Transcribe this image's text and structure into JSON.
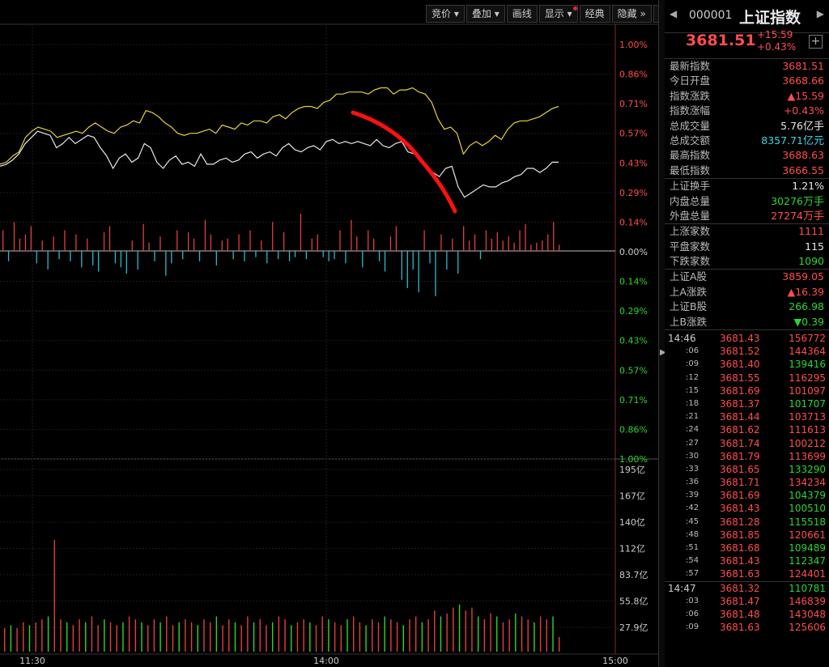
{
  "toolbar": {
    "buttons": [
      {
        "label": "竞价",
        "dropdown": true
      },
      {
        "label": "叠加",
        "dropdown": true
      },
      {
        "label": "画线",
        "dropdown": false
      },
      {
        "label": "显示",
        "dropdown": true
      },
      {
        "label": "经典",
        "dropdown": false
      },
      {
        "label": "隐藏",
        "dropdown": false
      }
    ],
    "fullscreen_icon": "fullscreen-icon"
  },
  "chart_data": {
    "type": "line",
    "pct_axis_labels": [
      "1.00%",
      "0.86%",
      "0.71%",
      "0.57%",
      "0.43%",
      "0.29%",
      "0.14%",
      "0.00%",
      "0.14%",
      "0.29%",
      "0.43%",
      "0.57%",
      "0.71%",
      "0.86%",
      "1.00%"
    ],
    "volume_axis_labels": [
      "195亿",
      "167亿",
      "140亿",
      "112亿",
      "83.7亿",
      "55.8亿",
      "27.9亿"
    ],
    "time_labels": [
      "11:30",
      "14:00",
      "15:00"
    ],
    "series": [
      {
        "color": "#e6d23a",
        "values": [
          0.42,
          0.43,
          0.46,
          0.48,
          0.55,
          0.58,
          0.6,
          0.59,
          0.58,
          0.55,
          0.56,
          0.57,
          0.58,
          0.57,
          0.6,
          0.62,
          0.6,
          0.58,
          0.57,
          0.6,
          0.61,
          0.63,
          0.62,
          0.68,
          0.67,
          0.65,
          0.62,
          0.6,
          0.57,
          0.56,
          0.57,
          0.57,
          0.58,
          0.59,
          0.57,
          0.61,
          0.6,
          0.59,
          0.62,
          0.61,
          0.63,
          0.63,
          0.62,
          0.65,
          0.66,
          0.64,
          0.67,
          0.69,
          0.7,
          0.7,
          0.69,
          0.72,
          0.73,
          0.76,
          0.76,
          0.77,
          0.77,
          0.77,
          0.76,
          0.78,
          0.79,
          0.79,
          0.76,
          0.78,
          0.78,
          0.79,
          0.77,
          0.76,
          0.72,
          0.64,
          0.59,
          0.6,
          0.57,
          0.47,
          0.51,
          0.53,
          0.51,
          0.53,
          0.56,
          0.54,
          0.59,
          0.62,
          0.63,
          0.63,
          0.64,
          0.65,
          0.67,
          0.69,
          0.7
        ]
      },
      {
        "color": "#e8e8e8",
        "values": [
          0.41,
          0.42,
          0.44,
          0.47,
          0.52,
          0.55,
          0.58,
          0.57,
          0.56,
          0.5,
          0.52,
          0.55,
          0.52,
          0.54,
          0.56,
          0.55,
          0.5,
          0.46,
          0.4,
          0.45,
          0.47,
          0.43,
          0.45,
          0.52,
          0.5,
          0.43,
          0.4,
          0.44,
          0.46,
          0.42,
          0.43,
          0.41,
          0.47,
          0.42,
          0.42,
          0.44,
          0.45,
          0.43,
          0.44,
          0.47,
          0.48,
          0.45,
          0.47,
          0.48,
          0.46,
          0.5,
          0.52,
          0.49,
          0.48,
          0.5,
          0.51,
          0.49,
          0.53,
          0.54,
          0.52,
          0.53,
          0.52,
          0.53,
          0.52,
          0.51,
          0.54,
          0.51,
          0.5,
          0.52,
          0.53,
          0.48,
          0.47,
          0.44,
          0.4,
          0.38,
          0.36,
          0.4,
          0.41,
          0.31,
          0.26,
          0.28,
          0.3,
          0.32,
          0.31,
          0.31,
          0.33,
          0.34,
          0.36,
          0.37,
          0.4,
          0.4,
          0.38,
          0.4,
          0.43,
          0.43
        ]
      }
    ],
    "bars": [
      0.1,
      -0.05,
      0.14,
      0.06,
      0.08,
      0.12,
      -0.06,
      0.05,
      -0.09,
      0.07,
      -0.04,
      0.1,
      -0.05,
      0.08,
      -0.08,
      0.06,
      -0.07,
      -0.1,
      0.09,
      0.12,
      -0.06,
      -0.08,
      -0.11,
      0.05,
      -0.09,
      0.13,
      0.04,
      -0.05,
      0.07,
      -0.12,
      -0.06,
      0.1,
      -0.04,
      0.09,
      0.06,
      -0.05,
      0.15,
      0.08,
      -0.07,
      0.05,
      0.06,
      -0.04,
      0.08,
      -0.05,
      0.1,
      -0.03,
      0.05,
      -0.06,
      0.14,
      -0.04,
      0.09,
      -0.05,
      -0.03,
      0.18,
      -0.04,
      0.06,
      0.08,
      -0.03,
      -0.05,
      -0.04,
      0.1,
      -0.06,
      0.15,
      0.07,
      -0.08,
      0.1,
      0.06,
      -0.05,
      -0.1,
      0.07,
      0.12,
      -0.14,
      -0.18,
      -0.09,
      -0.2,
      0.1,
      -0.06,
      -0.22,
      0.08,
      -0.09,
      0.06,
      -0.11,
      0.12,
      0.05,
      0.08,
      -0.04,
      0.1,
      0.06,
      0.09,
      0.05,
      0.07,
      0.04,
      0.1,
      0.13,
      0.03,
      0.04,
      0.05,
      0.08,
      0.14,
      0.03
    ],
    "volume": [
      8,
      9,
      8,
      10,
      9,
      10,
      11,
      12,
      38,
      11,
      10,
      9,
      11,
      10,
      12,
      9,
      11,
      10,
      9,
      10,
      12,
      11,
      10,
      9,
      11,
      10,
      12,
      9,
      10,
      11,
      10,
      9,
      11,
      10,
      12,
      9,
      11,
      10,
      9,
      12,
      10,
      11,
      9,
      10,
      12,
      11,
      9,
      10,
      11,
      10,
      9,
      12,
      11,
      10,
      9,
      11,
      12,
      10,
      9,
      11,
      10,
      12,
      11,
      10,
      9,
      11,
      12,
      10,
      11,
      14,
      12,
      13,
      15,
      16,
      14,
      15,
      12,
      11,
      13,
      12,
      10,
      11,
      13,
      12,
      11,
      10,
      12,
      11,
      12,
      5
    ]
  },
  "panel": {
    "code": "000001",
    "name": "上证指数",
    "price": "3681.51",
    "change": "+15.59",
    "change_pct": "+0.43%",
    "stats": [
      {
        "label": "最新指数",
        "value": "3681.51",
        "color": "red"
      },
      {
        "label": "今日开盘",
        "value": "3668.66",
        "color": "red"
      },
      {
        "label": "指数涨跌",
        "value": "▲15.59",
        "color": "red"
      },
      {
        "label": "指数涨幅",
        "value": "+0.43%",
        "color": "red"
      },
      {
        "label": "总成交量",
        "value": "5.76",
        "unit": "亿手",
        "color": "white"
      },
      {
        "label": "总成交额",
        "value": "8357.71",
        "unit": "亿元",
        "color": "cyan"
      },
      {
        "label": "最高指数",
        "value": "3688.63",
        "color": "red"
      },
      {
        "label": "最低指数",
        "value": "3666.55",
        "color": "red"
      },
      {
        "label": "上证换手",
        "value": "1.21%",
        "color": "white",
        "sep": "before"
      },
      {
        "label": "内盘总量",
        "value": "30276",
        "unit": "万手",
        "color": "green"
      },
      {
        "label": "外盘总量",
        "value": "27274",
        "unit": "万手",
        "color": "red"
      },
      {
        "label": "上涨家数",
        "value": "1111",
        "color": "red",
        "sep": "before"
      },
      {
        "label": "平盘家数",
        "value": "115",
        "color": "white"
      },
      {
        "label": "下跌家数",
        "value": "1090",
        "color": "green"
      },
      {
        "label": "上证A股",
        "value": "3859.05",
        "color": "red",
        "sep": "before"
      },
      {
        "label": "上A涨跌",
        "value": "▲16.39",
        "color": "red"
      },
      {
        "label": "上证B股",
        "value": "266.98",
        "color": "green"
      },
      {
        "label": "上B涨跌",
        "value": "▼0.39",
        "color": "green"
      }
    ],
    "ticks": [
      {
        "t": "14:46",
        "sub": false,
        "p": "3681.43",
        "q": "156772",
        "qc": "red"
      },
      {
        "t": ":06",
        "sub": true,
        "p": "3681.52",
        "q": "144364",
        "qc": "red"
      },
      {
        "t": ":09",
        "sub": true,
        "p": "3681.40",
        "q": "139416",
        "qc": "green"
      },
      {
        "t": ":12",
        "sub": true,
        "p": "3681.55",
        "q": "116295",
        "qc": "red"
      },
      {
        "t": ":15",
        "sub": true,
        "p": "3681.69",
        "q": "101097",
        "qc": "red"
      },
      {
        "t": ":18",
        "sub": true,
        "p": "3681.37",
        "q": "101707",
        "qc": "green"
      },
      {
        "t": ":21",
        "sub": true,
        "p": "3681.44",
        "q": "103713",
        "qc": "red"
      },
      {
        "t": ":24",
        "sub": true,
        "p": "3681.62",
        "q": "111613",
        "qc": "red"
      },
      {
        "t": ":27",
        "sub": true,
        "p": "3681.74",
        "q": "100212",
        "qc": "red"
      },
      {
        "t": ":30",
        "sub": true,
        "p": "3681.79",
        "q": "113699",
        "qc": "red"
      },
      {
        "t": ":33",
        "sub": true,
        "p": "3681.65",
        "q": "133290",
        "qc": "green"
      },
      {
        "t": ":36",
        "sub": true,
        "p": "3681.71",
        "q": "134234",
        "qc": "red"
      },
      {
        "t": ":39",
        "sub": true,
        "p": "3681.69",
        "q": "104379",
        "qc": "green"
      },
      {
        "t": ":42",
        "sub": true,
        "p": "3681.43",
        "q": "100510",
        "qc": "green"
      },
      {
        "t": ":45",
        "sub": true,
        "p": "3681.28",
        "q": "115518",
        "qc": "green"
      },
      {
        "t": ":48",
        "sub": true,
        "p": "3681.85",
        "q": "120661",
        "qc": "red"
      },
      {
        "t": ":51",
        "sub": true,
        "p": "3681.68",
        "q": "109489",
        "qc": "green"
      },
      {
        "t": ":54",
        "sub": true,
        "p": "3681.43",
        "q": "112347",
        "qc": "green"
      },
      {
        "t": ":57",
        "sub": true,
        "p": "3681.63",
        "q": "124401",
        "qc": "red"
      },
      {
        "t": "14:47",
        "sub": false,
        "p": "3681.32",
        "q": "110781",
        "qc": "green"
      },
      {
        "t": ":03",
        "sub": true,
        "p": "3681.47",
        "q": "146839",
        "qc": "red"
      },
      {
        "t": ":06",
        "sub": true,
        "p": "3681.48",
        "q": "143048",
        "qc": "red"
      },
      {
        "t": ":09",
        "sub": true,
        "p": "3681.63",
        "q": "125606",
        "qc": "red"
      }
    ]
  }
}
